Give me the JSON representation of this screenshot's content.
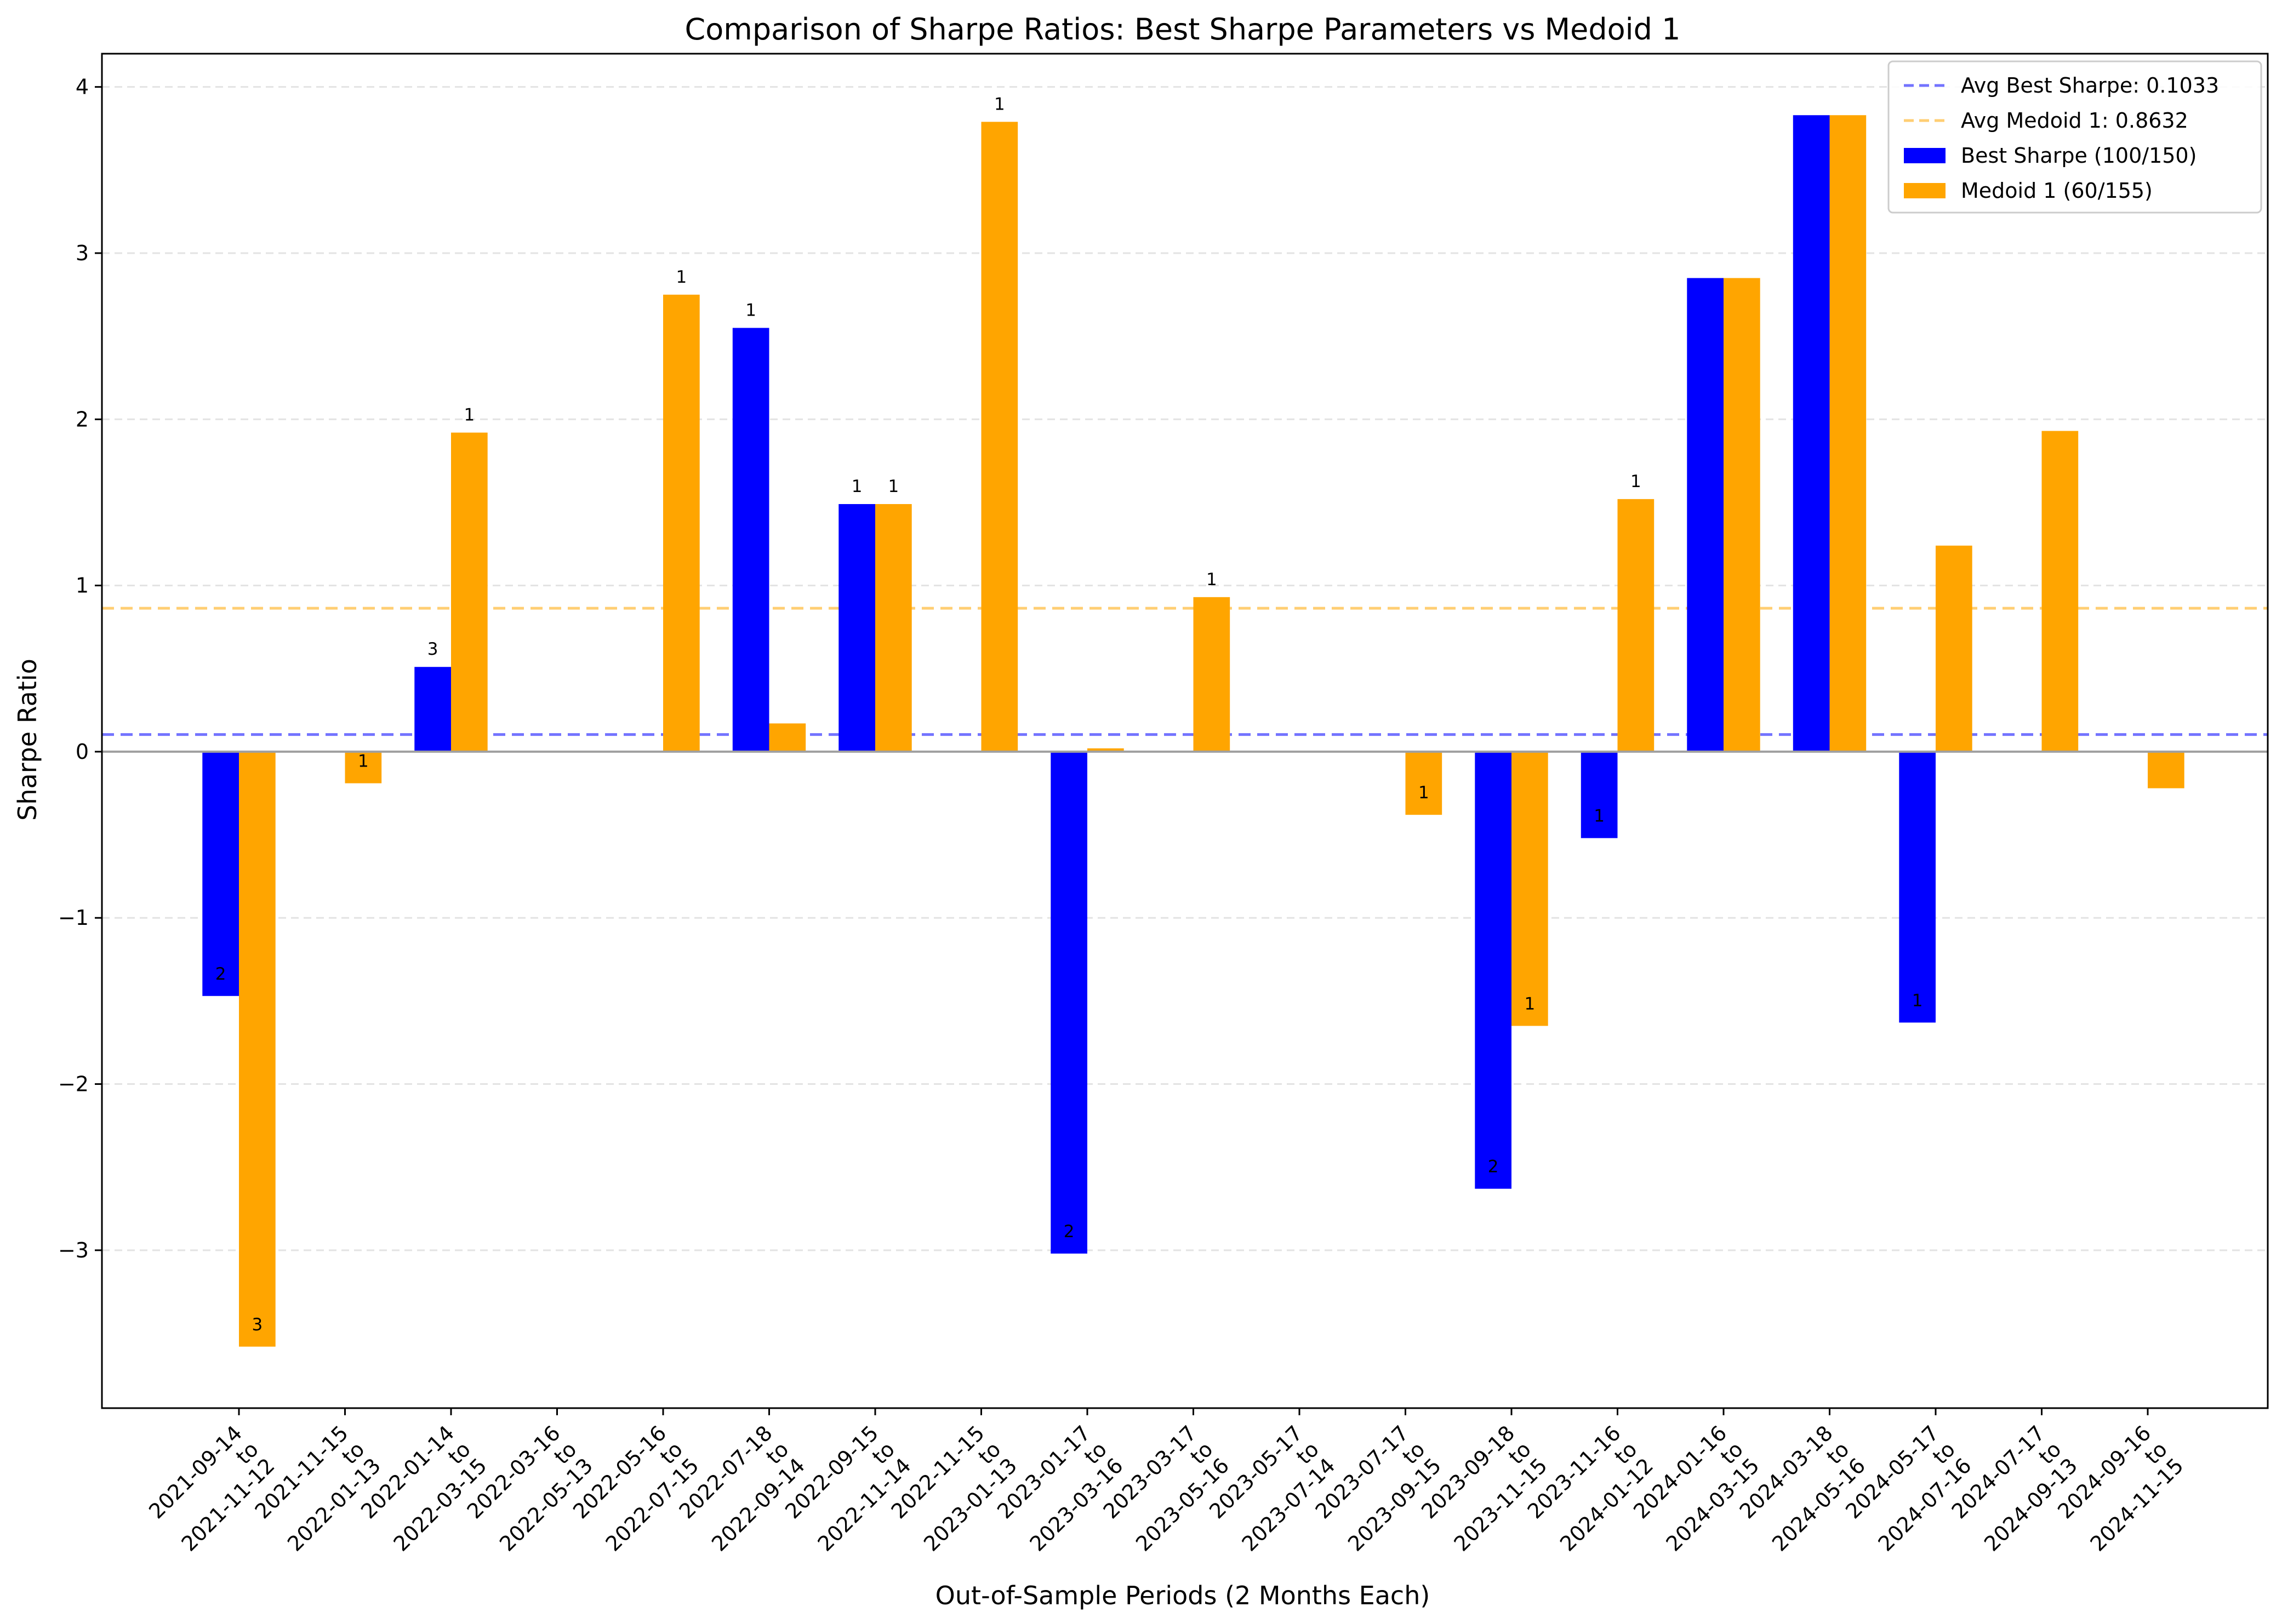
{
  "chart_data": {
    "type": "bar",
    "title": "Comparison of Sharpe Ratios: Best Sharpe Parameters vs Medoid 1",
    "xlabel": "Out-of-Sample Periods (2 Months Each)",
    "ylabel": "Sharpe Ratio",
    "ylim": [
      -3.95,
      4.2
    ],
    "yticks": [
      -3,
      -2,
      -1,
      0,
      1,
      2,
      3,
      4
    ],
    "ytick_labels": [
      "−3",
      "−2",
      "−1",
      "0",
      "1",
      "2",
      "3",
      "4"
    ],
    "grid": "y-dashed",
    "legend_position": "top-right",
    "categories": [
      "2021-09-14\nto\n2021-11-12",
      "2021-11-15\nto\n2022-01-13",
      "2022-01-14\nto\n2022-03-15",
      "2022-03-16\nto\n2022-05-13",
      "2022-05-16\nto\n2022-07-15",
      "2022-07-18\nto\n2022-09-14",
      "2022-09-15\nto\n2022-11-14",
      "2022-11-15\nto\n2023-01-13",
      "2023-01-17\nto\n2023-03-16",
      "2023-03-17\nto\n2023-05-16",
      "2023-05-17\nto\n2023-07-14",
      "2023-07-17\nto\n2023-09-15",
      "2023-09-18\nto\n2023-11-15",
      "2023-11-16\nto\n2024-01-12",
      "2024-01-16\nto\n2024-03-15",
      "2024-03-18\nto\n2024-05-16",
      "2024-05-17\nto\n2024-07-16",
      "2024-07-17\nto\n2024-09-13",
      "2024-09-16\nto\n2024-11-15"
    ],
    "series": [
      {
        "name": "Best Sharpe (100/150)",
        "color": "#0000ff",
        "values": [
          -1.47,
          0,
          0.51,
          0,
          0,
          2.55,
          1.49,
          0,
          -3.02,
          0,
          0,
          0,
          -2.63,
          -0.52,
          2.85,
          3.83,
          -1.63,
          0,
          0
        ],
        "labels": [
          "2",
          "",
          "3",
          "",
          "",
          "1",
          "1",
          "",
          "2",
          "",
          "",
          "",
          "2",
          "1",
          "",
          "",
          "1",
          "",
          ""
        ]
      },
      {
        "name": "Medoid 1 (60/155)",
        "color": "#ffa500",
        "values": [
          -3.58,
          -0.19,
          1.92,
          0,
          2.75,
          0.17,
          1.49,
          3.79,
          0.02,
          0.93,
          0,
          -0.38,
          -1.65,
          1.52,
          2.85,
          3.83,
          1.24,
          1.93,
          -0.22
        ],
        "labels": [
          "3",
          "1",
          "1",
          "",
          "1",
          "",
          "1",
          "1",
          "",
          "1",
          "",
          "1",
          "1",
          "1",
          "",
          "",
          "",
          "",
          ""
        ]
      }
    ],
    "reference_lines": [
      {
        "name": "Avg Best Sharpe: 0.1033",
        "value": 0.1033,
        "color": "#0000ff"
      },
      {
        "name": "Avg Medoid 1: 0.8632",
        "value": 0.8632,
        "color": "#ffa500"
      }
    ]
  }
}
